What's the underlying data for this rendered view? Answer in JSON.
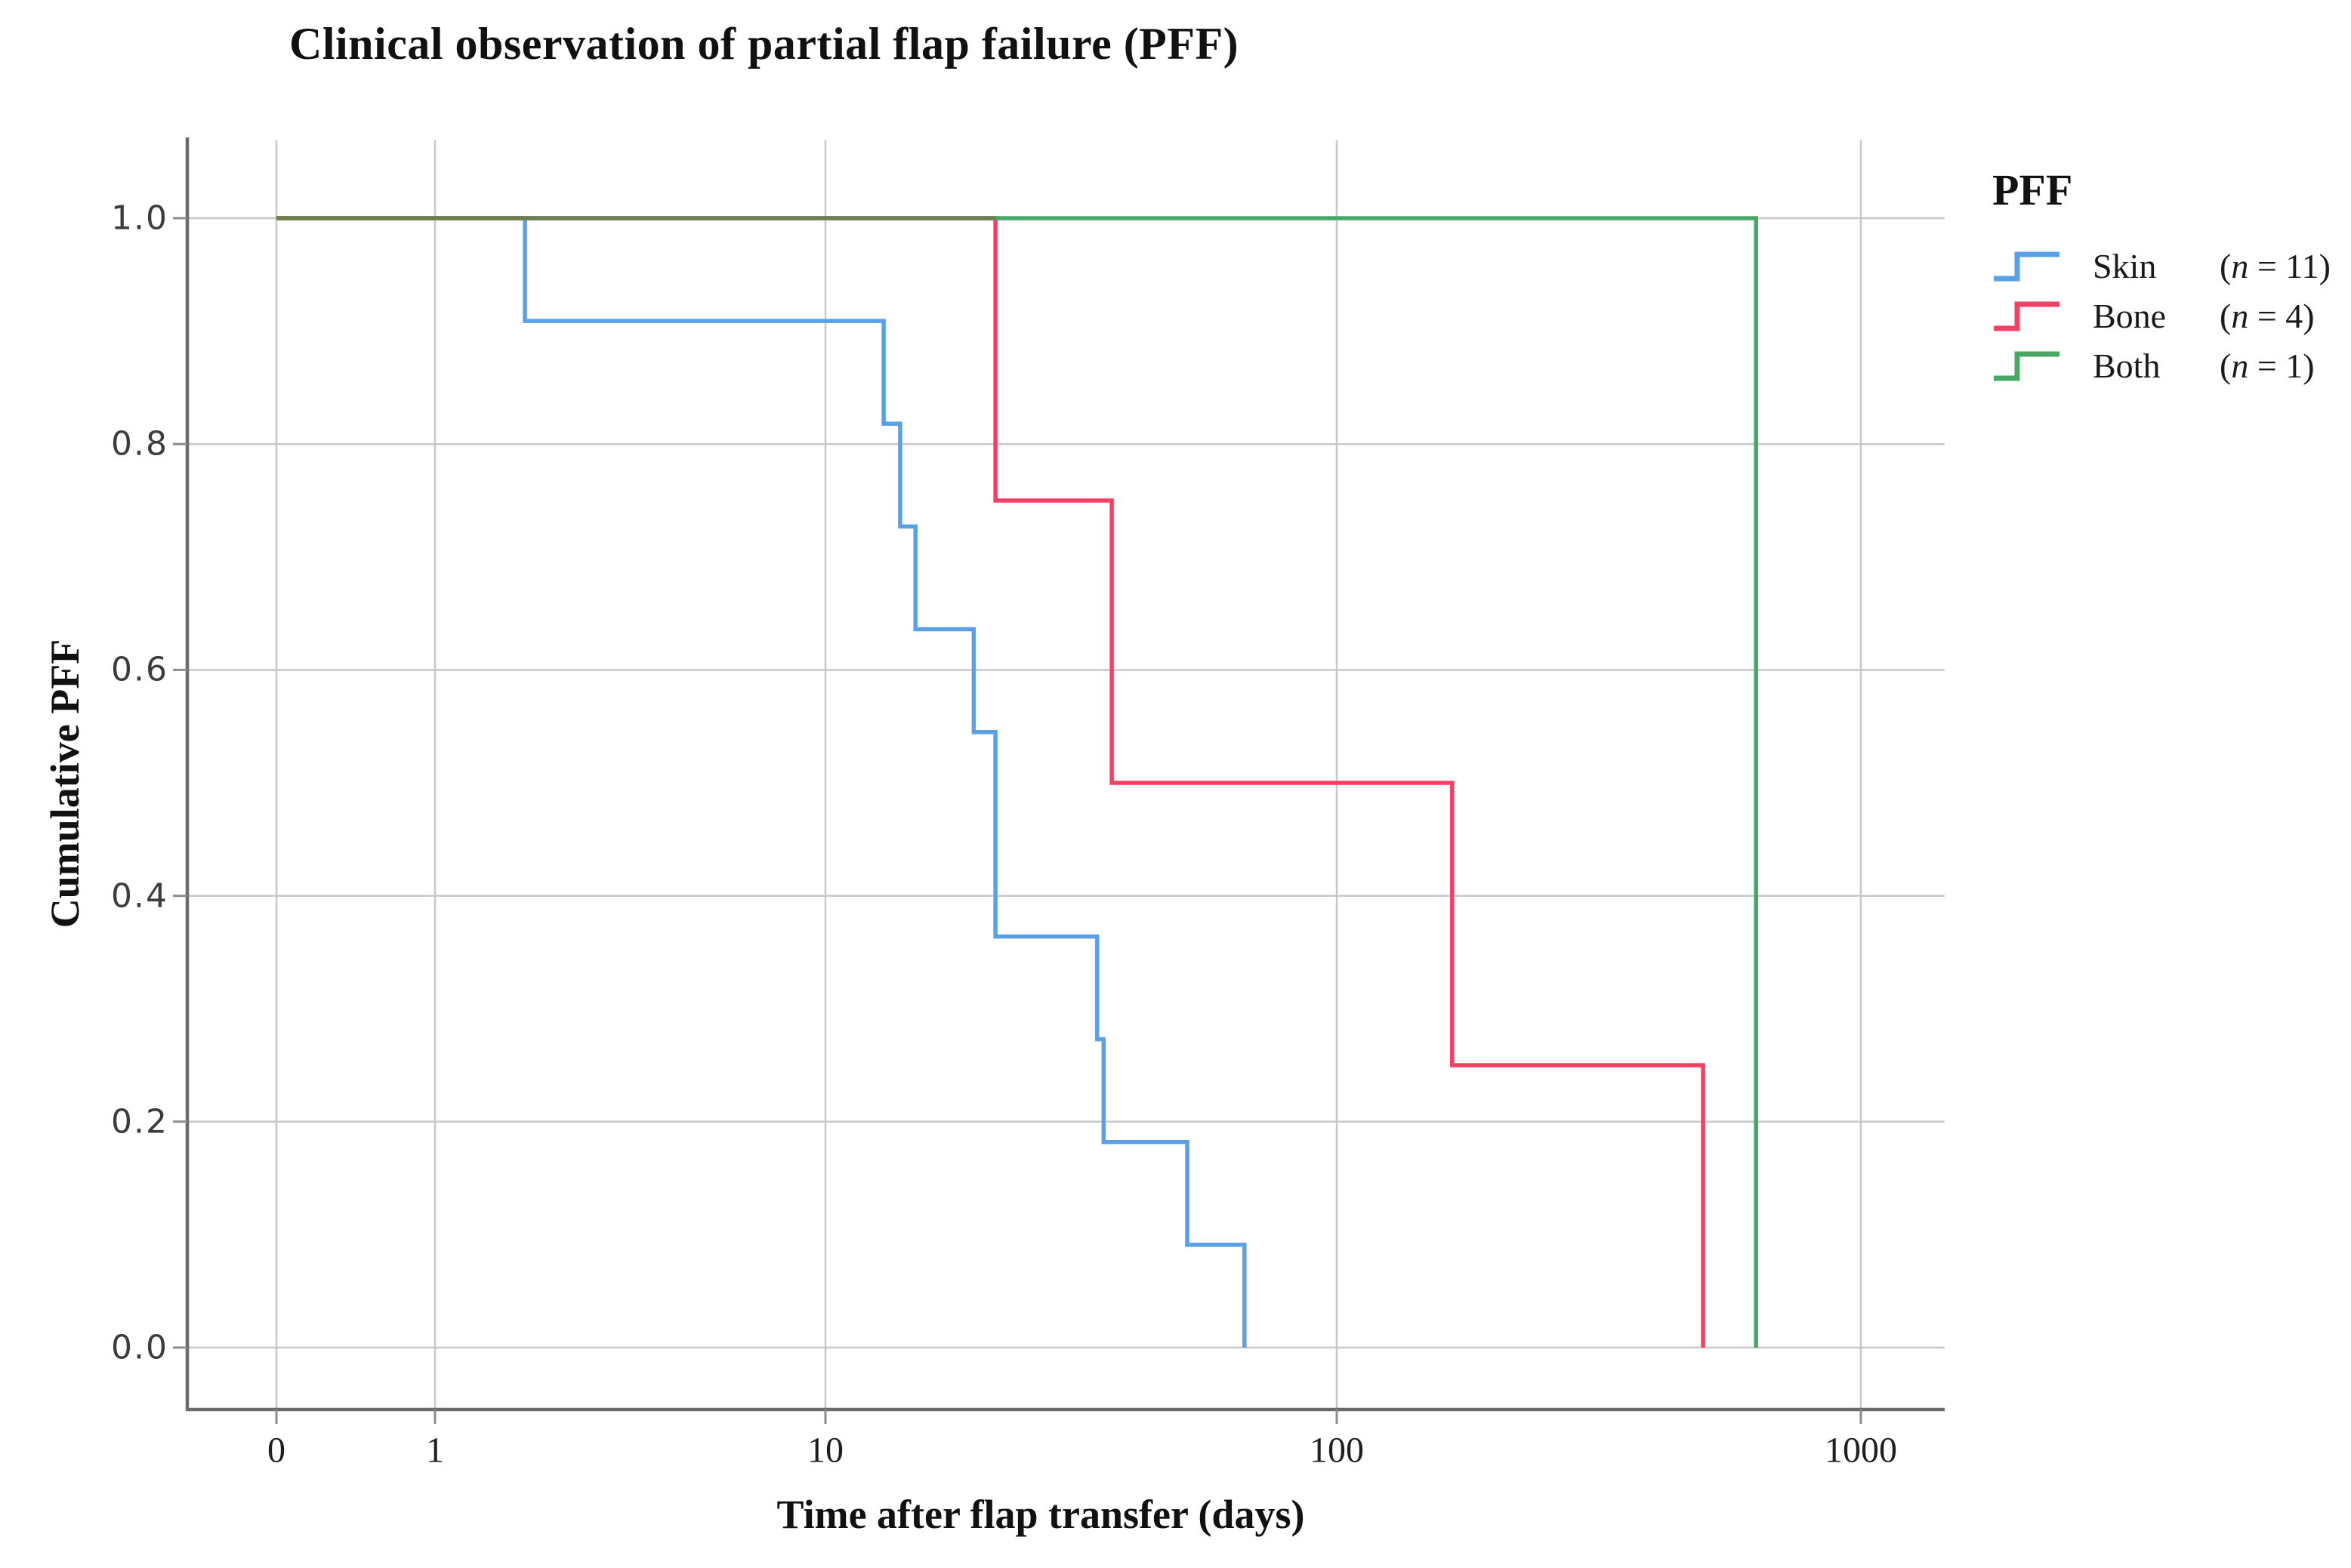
{
  "title": "Clinical observation of partial flap failure (PFF)",
  "axes": {
    "x": {
      "label": "Time after flap transfer (days)",
      "tick_labels": [
        "0",
        "1",
        "10",
        "100",
        "1000"
      ]
    },
    "y": {
      "label": "Cumulative PFF",
      "tick_labels": [
        "0.0",
        "0.2",
        "0.4",
        "0.6",
        "0.8",
        "1.0"
      ]
    }
  },
  "legend": {
    "title": "PFF",
    "items": [
      {
        "name": "Skin",
        "n_open": "(",
        "n_var": "n",
        "n_rest": " = 11)"
      },
      {
        "name": "Bone",
        "n_open": "(",
        "n_var": "n",
        "n_rest": " = 4)"
      },
      {
        "name": "Both",
        "n_open": "(",
        "n_var": "n",
        "n_rest": " = 1)"
      }
    ]
  },
  "chart_data": {
    "type": "line",
    "subtype": "kaplan-meier-step",
    "title": "Clinical observation of partial flap failure (PFF)",
    "xlabel": "Time after flap transfer (days)",
    "ylabel": "Cumulative PFF",
    "x_scale": "log decades 1-1000 with a zero tick left of 1",
    "x_ticks": [
      0,
      1,
      10,
      100,
      1000
    ],
    "y_ticks": [
      0.0,
      0.2,
      0.4,
      0.6,
      0.8,
      1.0
    ],
    "ylim": [
      0.0,
      1.0
    ],
    "grid": true,
    "legend_position": "right-top",
    "start": {
      "time": 0,
      "value": 1.0
    },
    "series": [
      {
        "name": "Skin",
        "n": 11,
        "color": "#5AA0E8",
        "steps": [
          [
            1.7,
            0.909
          ],
          [
            13,
            0.818
          ],
          [
            14,
            0.727
          ],
          [
            15,
            0.636
          ],
          [
            19.5,
            0.545
          ],
          [
            21.5,
            0.364
          ],
          [
            34,
            0.273
          ],
          [
            35,
            0.182
          ],
          [
            51,
            0.091
          ],
          [
            66,
            0.0
          ]
        ]
      },
      {
        "name": "Bone",
        "n": 4,
        "color": "#F73E63",
        "steps": [
          [
            21.5,
            0.75
          ],
          [
            36.3,
            0.5
          ],
          [
            166,
            0.25
          ],
          [
            500,
            0.0
          ]
        ]
      },
      {
        "name": "Both",
        "n": 1,
        "color": "#47A763",
        "steps": [
          [
            631,
            0.0
          ]
        ]
      }
    ],
    "overlap_line_color": "#6F7E4F"
  }
}
